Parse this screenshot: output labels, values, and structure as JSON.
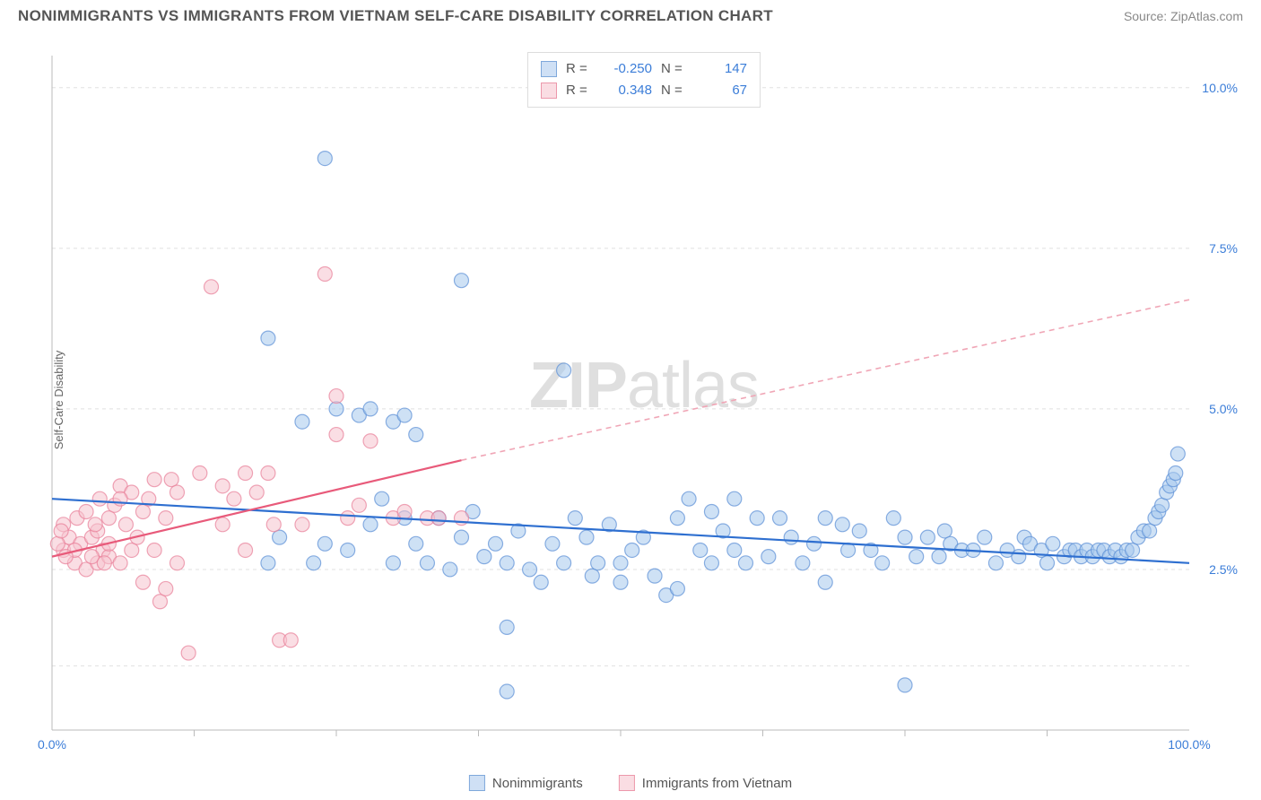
{
  "title": "NONIMMIGRANTS VS IMMIGRANTS FROM VIETNAM SELF-CARE DISABILITY CORRELATION CHART",
  "source": "Source: ZipAtlas.com",
  "watermark_bold": "ZIP",
  "watermark_rest": "atlas",
  "ylabel": "Self-Care Disability",
  "chart": {
    "type": "scatter",
    "plot_bg": "#ffffff",
    "grid_color": "#e0e0e0",
    "axis_label_color": "#3b7dd8",
    "tick_fontsize": 14,
    "xlim": [
      0,
      100
    ],
    "ylim": [
      0,
      10.5
    ],
    "xticks": [
      0,
      100
    ],
    "xtick_labels": [
      "0.0%",
      "100.0%"
    ],
    "yticks": [
      2.5,
      5.0,
      7.5,
      10.0
    ],
    "ytick_labels": [
      "2.5%",
      "5.0%",
      "7.5%",
      "10.0%"
    ],
    "x_minor_ticks": [
      12.5,
      25,
      37.5,
      50,
      62.5,
      75,
      87.5
    ],
    "marker_radius": 8,
    "marker_opacity": 0.55,
    "marker_stroke_width": 1.2,
    "series": [
      {
        "name": "Nonimmigrants",
        "color_fill": "#a6c8ed",
        "color_stroke": "#5b8fd6",
        "swatch_fill": "#cfe0f5",
        "swatch_border": "#7fa8db",
        "R": "-0.250",
        "N": "147",
        "trend": {
          "x1": 0,
          "y1": 3.6,
          "x2": 100,
          "y2": 2.6,
          "color": "#2e6fd0",
          "width": 2.2,
          "dash": "none"
        },
        "points": [
          [
            24,
            8.9
          ],
          [
            36,
            7.0
          ],
          [
            19,
            6.1
          ],
          [
            25,
            5.0
          ],
          [
            27,
            4.9
          ],
          [
            30,
            4.8
          ],
          [
            45,
            5.6
          ],
          [
            40,
            0.6
          ],
          [
            40,
            1.6
          ],
          [
            50,
            2.6
          ],
          [
            52,
            3.0
          ],
          [
            55,
            3.3
          ],
          [
            53,
            2.4
          ],
          [
            57,
            2.8
          ],
          [
            60,
            2.8
          ],
          [
            58,
            3.4
          ],
          [
            62,
            3.3
          ],
          [
            63,
            2.7
          ],
          [
            65,
            3.0
          ],
          [
            64,
            3.3
          ],
          [
            67,
            2.9
          ],
          [
            68,
            3.3
          ],
          [
            70,
            2.8
          ],
          [
            69.5,
            3.2
          ],
          [
            71,
            3.1
          ],
          [
            72,
            2.8
          ],
          [
            73,
            2.6
          ],
          [
            74,
            3.3
          ],
          [
            75,
            3.0
          ],
          [
            76,
            2.7
          ],
          [
            77,
            3.0
          ],
          [
            78,
            2.7
          ],
          [
            78.5,
            3.1
          ],
          [
            79,
            2.9
          ],
          [
            80,
            2.8
          ],
          [
            81,
            2.8
          ],
          [
            82,
            3.0
          ],
          [
            83,
            2.6
          ],
          [
            84,
            2.8
          ],
          [
            85,
            2.7
          ],
          [
            85.5,
            3.0
          ],
          [
            86,
            2.9
          ],
          [
            87,
            2.8
          ],
          [
            87.5,
            2.6
          ],
          [
            88,
            2.9
          ],
          [
            89,
            2.7
          ],
          [
            89.5,
            2.8
          ],
          [
            90,
            2.8
          ],
          [
            90.5,
            2.7
          ],
          [
            91,
            2.8
          ],
          [
            91.5,
            2.7
          ],
          [
            92,
            2.8
          ],
          [
            92.5,
            2.8
          ],
          [
            93,
            2.7
          ],
          [
            93.5,
            2.8
          ],
          [
            94,
            2.7
          ],
          [
            94.5,
            2.8
          ],
          [
            95,
            2.8
          ],
          [
            95.5,
            3.0
          ],
          [
            96,
            3.1
          ],
          [
            96.5,
            3.1
          ],
          [
            97,
            3.3
          ],
          [
            97.3,
            3.4
          ],
          [
            97.6,
            3.5
          ],
          [
            98,
            3.7
          ],
          [
            98.3,
            3.8
          ],
          [
            98.6,
            3.9
          ],
          [
            98.8,
            4.0
          ],
          [
            99,
            4.3
          ],
          [
            24,
            2.9
          ],
          [
            26,
            2.8
          ],
          [
            28,
            3.2
          ],
          [
            30,
            2.6
          ],
          [
            31,
            3.3
          ],
          [
            32,
            2.9
          ],
          [
            33,
            2.6
          ],
          [
            34,
            3.3
          ],
          [
            35,
            2.5
          ],
          [
            36,
            3.0
          ],
          [
            37,
            3.4
          ],
          [
            38,
            2.7
          ],
          [
            39,
            2.9
          ],
          [
            40,
            2.6
          ],
          [
            41,
            3.1
          ],
          [
            42,
            2.5
          ],
          [
            43,
            2.3
          ],
          [
            44,
            2.9
          ],
          [
            45,
            2.6
          ],
          [
            46,
            3.3
          ],
          [
            47,
            3.0
          ],
          [
            47.5,
            2.4
          ],
          [
            48,
            2.6
          ],
          [
            49,
            3.2
          ],
          [
            50,
            2.3
          ],
          [
            51,
            2.8
          ],
          [
            29,
            3.6
          ],
          [
            31,
            4.9
          ],
          [
            22,
            4.8
          ],
          [
            23,
            2.6
          ],
          [
            28,
            5.0
          ],
          [
            19,
            2.6
          ],
          [
            20,
            3.0
          ],
          [
            75,
            0.7
          ],
          [
            68,
            2.3
          ],
          [
            54,
            2.1
          ],
          [
            56,
            3.6
          ],
          [
            58,
            2.6
          ],
          [
            59,
            3.1
          ],
          [
            61,
            2.6
          ],
          [
            60,
            3.6
          ],
          [
            66,
            2.6
          ],
          [
            55,
            2.2
          ],
          [
            32,
            4.6
          ]
        ]
      },
      {
        "name": "Immigrants from Vietnam",
        "color_fill": "#f5c3ce",
        "color_stroke": "#e87f99",
        "swatch_fill": "#fadde3",
        "swatch_border": "#ec98ab",
        "R": "0.348",
        "N": "67",
        "trend_solid": {
          "x1": 0,
          "y1": 2.7,
          "x2": 36,
          "y2": 4.2,
          "color": "#e85a7a",
          "width": 2.2
        },
        "trend_dash": {
          "x1": 36,
          "y1": 4.2,
          "x2": 100,
          "y2": 6.7,
          "color": "#f0a6b6",
          "width": 1.6,
          "dash": "6 5"
        },
        "points": [
          [
            1,
            2.8
          ],
          [
            1.5,
            3.0
          ],
          [
            2,
            2.6
          ],
          [
            2.2,
            3.3
          ],
          [
            2.5,
            2.9
          ],
          [
            3,
            3.4
          ],
          [
            3,
            2.5
          ],
          [
            3.5,
            3.0
          ],
          [
            4,
            2.6
          ],
          [
            4.2,
            3.6
          ],
          [
            4.5,
            2.8
          ],
          [
            5,
            3.3
          ],
          [
            5,
            2.7
          ],
          [
            5.5,
            3.5
          ],
          [
            6,
            3.8
          ],
          [
            6,
            2.6
          ],
          [
            6.5,
            3.2
          ],
          [
            7,
            2.8
          ],
          [
            7,
            3.7
          ],
          [
            7.5,
            3.0
          ],
          [
            8,
            3.4
          ],
          [
            8,
            2.3
          ],
          [
            8.5,
            3.6
          ],
          [
            9,
            2.8
          ],
          [
            9,
            3.9
          ],
          [
            9.5,
            2.0
          ],
          [
            10,
            2.2
          ],
          [
            10,
            3.3
          ],
          [
            10.5,
            3.9
          ],
          [
            11,
            2.6
          ],
          [
            11,
            3.7
          ],
          [
            12,
            1.2
          ],
          [
            13,
            4.0
          ],
          [
            14,
            6.9
          ],
          [
            15,
            3.2
          ],
          [
            15,
            3.8
          ],
          [
            16,
            3.6
          ],
          [
            17,
            4.0
          ],
          [
            17,
            2.8
          ],
          [
            18,
            3.7
          ],
          [
            19,
            4.0
          ],
          [
            19.5,
            3.2
          ],
          [
            20,
            1.4
          ],
          [
            21,
            1.4
          ],
          [
            22,
            3.2
          ],
          [
            24,
            7.1
          ],
          [
            25,
            4.6
          ],
          [
            25,
            5.2
          ],
          [
            26,
            3.3
          ],
          [
            27,
            3.5
          ],
          [
            28,
            4.5
          ],
          [
            30,
            3.3
          ],
          [
            31,
            3.4
          ],
          [
            33,
            3.3
          ],
          [
            34,
            3.3
          ],
          [
            36,
            3.3
          ],
          [
            2,
            2.8
          ],
          [
            3.5,
            2.7
          ],
          [
            1,
            3.2
          ],
          [
            0.5,
            2.9
          ],
          [
            0.8,
            3.1
          ],
          [
            1.2,
            2.7
          ],
          [
            4,
            3.1
          ],
          [
            5,
            2.9
          ],
          [
            6,
            3.6
          ],
          [
            3.8,
            3.2
          ],
          [
            4.6,
            2.6
          ]
        ]
      }
    ]
  },
  "legend_bottom": [
    {
      "label": "Nonimmigrants",
      "fill": "#cfe0f5",
      "border": "#7fa8db"
    },
    {
      "label": "Immigrants from Vietnam",
      "fill": "#fadde3",
      "border": "#ec98ab"
    }
  ]
}
